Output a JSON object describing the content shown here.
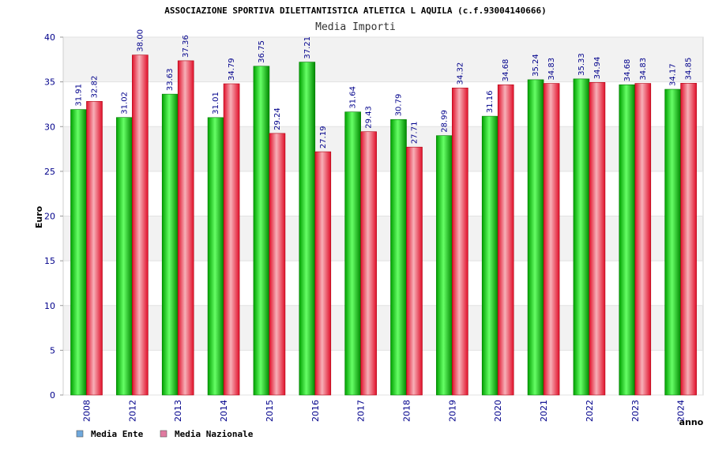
{
  "chart_data": {
    "type": "bar",
    "title": "ASSOCIAZIONE SPORTIVA DILETTANTISTICA ATLETICA L AQUILA (c.f.93004140666)",
    "subtitle": "Media Importi",
    "xlabel": "anno",
    "ylabel": "Euro",
    "ylim": [
      0,
      40
    ],
    "yticks": [
      0,
      5,
      10,
      15,
      20,
      25,
      30,
      35,
      40
    ],
    "grid": true,
    "legend_position": "bottom-left",
    "categories": [
      "2008",
      "2012",
      "2013",
      "2014",
      "2015",
      "2016",
      "2017",
      "2018",
      "2019",
      "2020",
      "2021",
      "2022",
      "2023",
      "2024"
    ],
    "series": [
      {
        "name": "Media Ente",
        "color": "#00c800",
        "legend_color": "#6fa8dc",
        "values": [
          31.91,
          31.02,
          33.63,
          31.01,
          36.75,
          37.21,
          31.64,
          30.79,
          28.99,
          31.16,
          35.24,
          35.33,
          34.68,
          34.17
        ],
        "labels": [
          "31.91",
          "31.02",
          "33.63",
          "31.01",
          "36.75",
          "37.21",
          "31.64",
          "30.79",
          "28.99",
          "31.16",
          "35.24",
          "35.33",
          "34.68",
          "34.17"
        ]
      },
      {
        "name": "Media Nazionale",
        "color": "#e8202a",
        "legend_color": "#e07aa0",
        "values": [
          32.82,
          38.0,
          37.36,
          34.79,
          29.24,
          27.19,
          29.43,
          27.71,
          34.32,
          34.68,
          34.83,
          34.94,
          34.83,
          34.85
        ],
        "labels": [
          "32.82",
          "38.00",
          "37.36",
          "34.79",
          "29.24",
          "27.19",
          "29.43",
          "27.71",
          "34.32",
          "34.68",
          "34.83",
          "34.94",
          "34.83",
          "34.85"
        ]
      }
    ]
  }
}
